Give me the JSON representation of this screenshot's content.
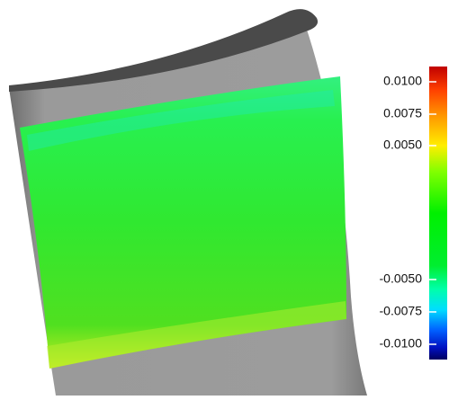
{
  "colorbar": {
    "labels": [
      "0.0100",
      "0.0075",
      "0.0050",
      "-0.0050",
      "-0.0075",
      "-0.0100"
    ]
  }
}
